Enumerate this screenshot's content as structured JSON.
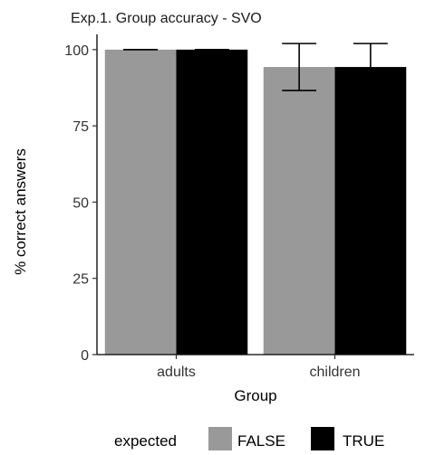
{
  "chart_data": {
    "type": "bar",
    "title": "Exp.1. Group accuracy - SVO",
    "xlabel": "Group",
    "ylabel": "% correct answers",
    "categories": [
      "adults",
      "children"
    ],
    "series": [
      {
        "name": "FALSE",
        "values": [
          100,
          94.3
        ],
        "error_low": [
          100,
          86.6
        ],
        "error_high": [
          100,
          102.0
        ]
      },
      {
        "name": "TRUE",
        "values": [
          100,
          94.3
        ],
        "error_low": [
          100,
          86.6
        ],
        "error_high": [
          100,
          102.0
        ]
      }
    ],
    "ylim": [
      0,
      105
    ],
    "yticks": [
      0,
      25,
      50,
      75,
      100
    ],
    "ytick_labels": [
      "0",
      "25",
      "50",
      "75",
      "100"
    ],
    "grid": false,
    "legend": {
      "title": "expected",
      "position": "bottom",
      "entries": [
        "FALSE",
        "TRUE"
      ]
    },
    "colors": {
      "FALSE": "#999999",
      "TRUE": "#000000",
      "axis": "#000000",
      "errorbar": "#000000"
    }
  }
}
